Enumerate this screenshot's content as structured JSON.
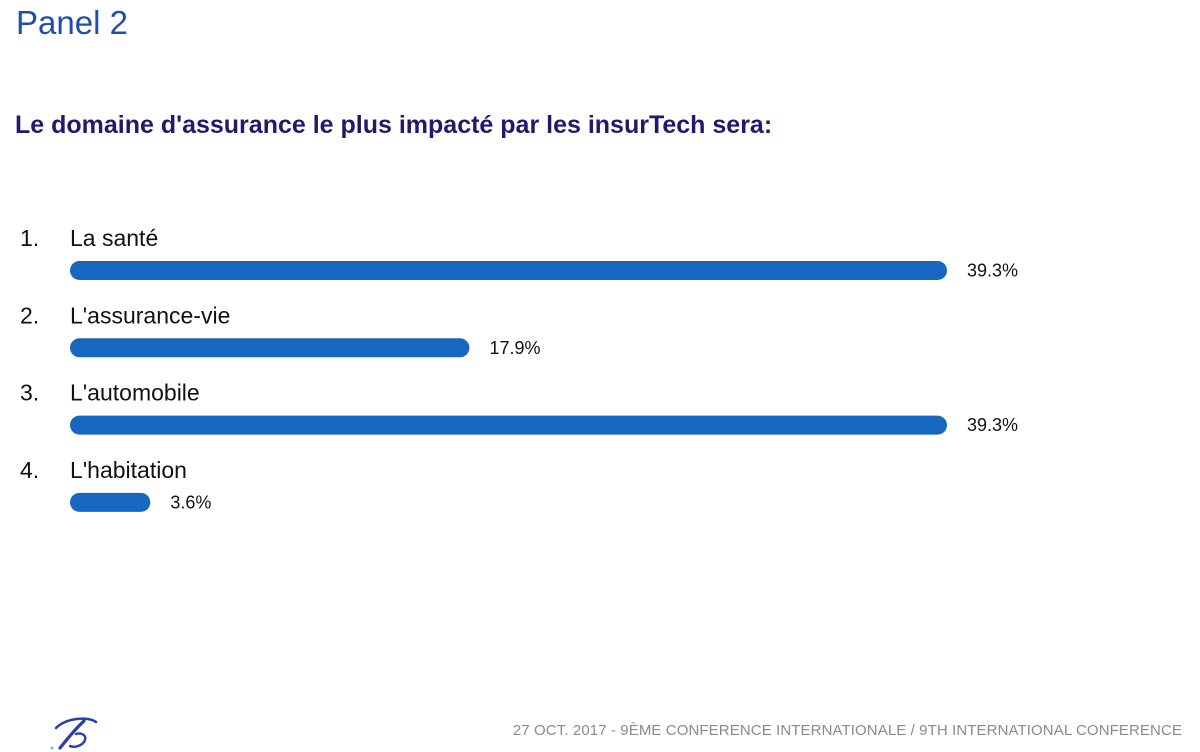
{
  "header": {
    "panel_title": "Panel 2",
    "question": "Le domaine d'assurance le plus impacté par les insurTech sera:"
  },
  "colors": {
    "bar": "#1767c0",
    "title": "#1f4eaa",
    "question": "#1f1a6e",
    "footer": "#8a8a8a"
  },
  "chart_data": {
    "type": "bar",
    "orientation": "horizontal",
    "categories": [
      "1.",
      "2.",
      "3.",
      "4."
    ],
    "category_labels": [
      "La santé",
      "L'assurance-vie",
      "L'automobile",
      "L'habitation"
    ],
    "values": [
      39.3,
      17.9,
      39.3,
      3.6
    ],
    "value_labels": [
      "39.3%",
      "17.9%",
      "39.3%",
      "3.6%"
    ],
    "title": "Le domaine d'assurance le plus impacté par les insurTech sera:",
    "xlabel": "",
    "ylabel": "",
    "grid": false,
    "legend": "none"
  },
  "footer": {
    "text": "27 OCT. 2017 - 9ÈME CONFERENCE INTERNATIONALE / 9TH INTERNATIONAL CONFERENCE",
    "logo_icon": "conference-logo-icon"
  }
}
